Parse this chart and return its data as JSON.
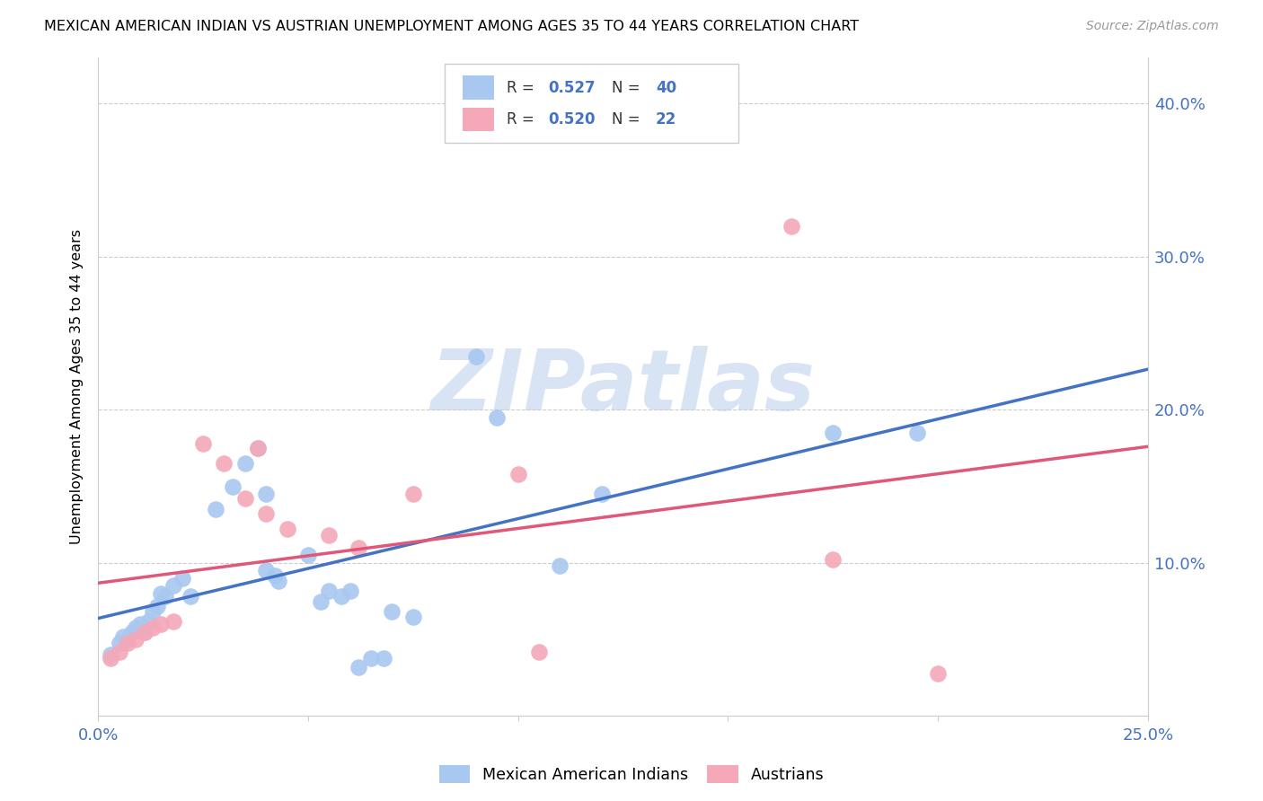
{
  "title": "MEXICAN AMERICAN INDIAN VS AUSTRIAN UNEMPLOYMENT AMONG AGES 35 TO 44 YEARS CORRELATION CHART",
  "source": "Source: ZipAtlas.com",
  "ylabel": "Unemployment Among Ages 35 to 44 years",
  "xlim": [
    0.0,
    0.25
  ],
  "ylim": [
    0.0,
    0.43
  ],
  "color_blue": "#a8c8f0",
  "color_pink": "#f4a8b8",
  "trendline_blue": "#4472c4",
  "trendline_pink": "#e05878",
  "watermark": "ZIPatlas",
  "blue_scatter": [
    [
      0.003,
      0.04
    ],
    [
      0.005,
      0.048
    ],
    [
      0.006,
      0.052
    ],
    [
      0.007,
      0.05
    ],
    [
      0.008,
      0.055
    ],
    [
      0.009,
      0.058
    ],
    [
      0.01,
      0.06
    ],
    [
      0.011,
      0.055
    ],
    [
      0.012,
      0.062
    ],
    [
      0.013,
      0.068
    ],
    [
      0.014,
      0.072
    ],
    [
      0.015,
      0.08
    ],
    [
      0.016,
      0.078
    ],
    [
      0.018,
      0.085
    ],
    [
      0.02,
      0.09
    ],
    [
      0.022,
      0.078
    ],
    [
      0.028,
      0.135
    ],
    [
      0.032,
      0.15
    ],
    [
      0.035,
      0.165
    ],
    [
      0.038,
      0.175
    ],
    [
      0.04,
      0.145
    ],
    [
      0.04,
      0.095
    ],
    [
      0.042,
      0.092
    ],
    [
      0.043,
      0.088
    ],
    [
      0.05,
      0.105
    ],
    [
      0.053,
      0.075
    ],
    [
      0.055,
      0.082
    ],
    [
      0.058,
      0.078
    ],
    [
      0.06,
      0.082
    ],
    [
      0.062,
      0.032
    ],
    [
      0.065,
      0.038
    ],
    [
      0.068,
      0.038
    ],
    [
      0.07,
      0.068
    ],
    [
      0.075,
      0.065
    ],
    [
      0.09,
      0.235
    ],
    [
      0.095,
      0.195
    ],
    [
      0.11,
      0.098
    ],
    [
      0.12,
      0.145
    ],
    [
      0.175,
      0.185
    ],
    [
      0.195,
      0.185
    ]
  ],
  "pink_scatter": [
    [
      0.003,
      0.038
    ],
    [
      0.005,
      0.042
    ],
    [
      0.007,
      0.048
    ],
    [
      0.009,
      0.05
    ],
    [
      0.011,
      0.055
    ],
    [
      0.013,
      0.058
    ],
    [
      0.015,
      0.06
    ],
    [
      0.018,
      0.062
    ],
    [
      0.025,
      0.178
    ],
    [
      0.03,
      0.165
    ],
    [
      0.035,
      0.142
    ],
    [
      0.038,
      0.175
    ],
    [
      0.04,
      0.132
    ],
    [
      0.045,
      0.122
    ],
    [
      0.055,
      0.118
    ],
    [
      0.062,
      0.11
    ],
    [
      0.075,
      0.145
    ],
    [
      0.1,
      0.158
    ],
    [
      0.105,
      0.042
    ],
    [
      0.165,
      0.32
    ],
    [
      0.175,
      0.102
    ],
    [
      0.2,
      0.028
    ]
  ],
  "trendline_blue_params": [
    0.8,
    0.03
  ],
  "trendline_pink_params": [
    0.76,
    0.03
  ]
}
